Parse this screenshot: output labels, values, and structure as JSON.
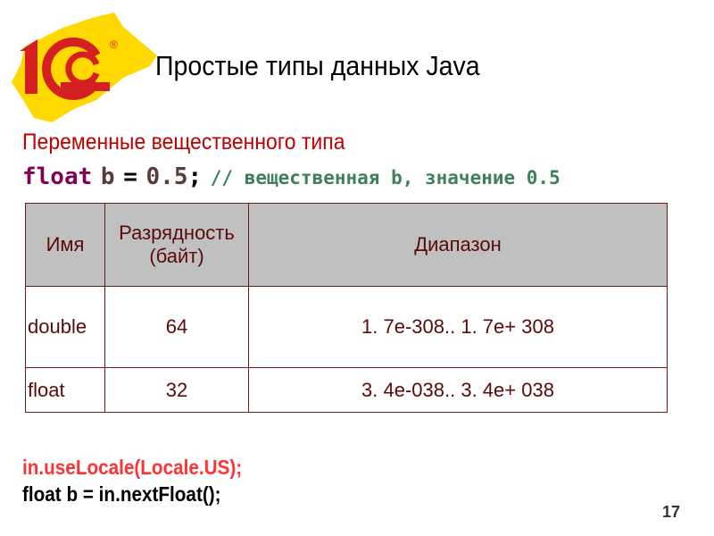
{
  "slide": {
    "logo_text": "1C®",
    "title": "Простые типы данных Java",
    "subtitle": "Переменные вещественного типа",
    "code_line": {
      "keyword": "float",
      "variable": "b",
      "operator": "=",
      "value": "0.5",
      "semicolon": ";",
      "comment": "// вещественная b, значение 0.5"
    },
    "table": {
      "headers": [
        "Имя",
        "Разрядность (байт)",
        "Диапазон"
      ],
      "rows": [
        [
          "double",
          "64",
          "1. 7e-308.. 1. 7e+ 308"
        ],
        [
          "float",
          "32",
          "3. 4e-038.. 3. 4e+ 038"
        ]
      ]
    },
    "code_bottom": {
      "line1": "in.useLocale(Locale.US);",
      "line2": "float b = in.nextFloat();"
    },
    "page_number": "17",
    "colors": {
      "subtitle": "#c00000",
      "logo_red": "#d42020",
      "logo_yellow": "#ffd800",
      "table_header_bg": "#c0c0c0",
      "comment": "#3f7f5f"
    }
  }
}
